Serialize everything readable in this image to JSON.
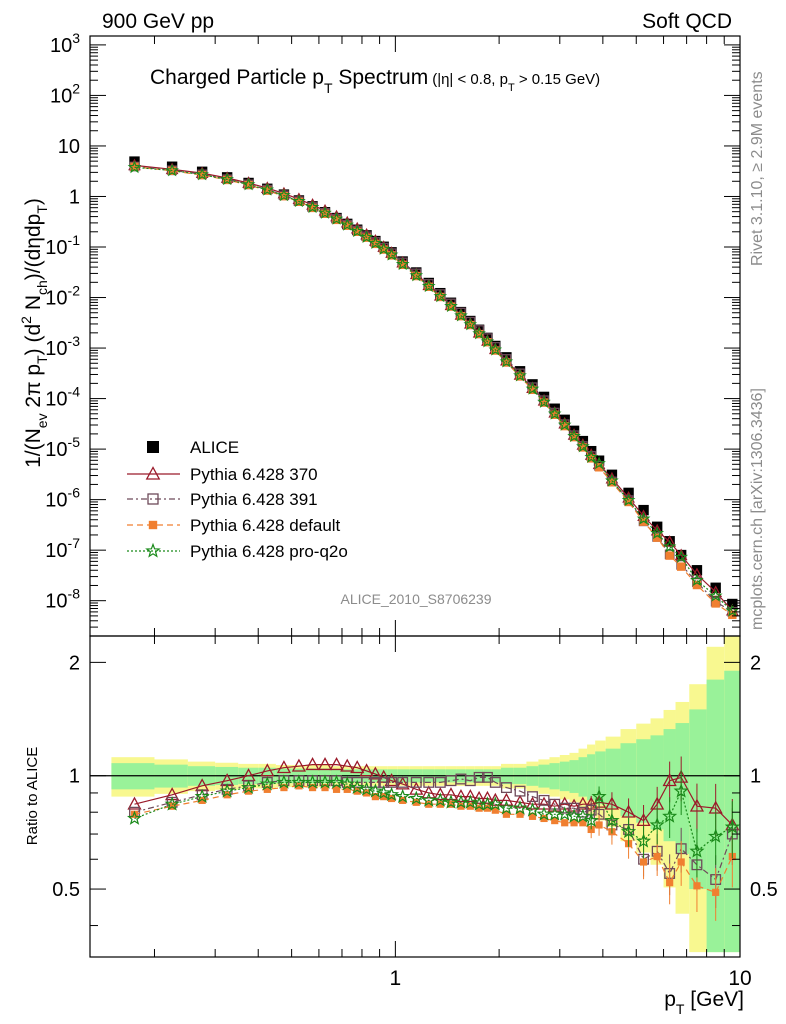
{
  "header": {
    "left": "900 GeV pp",
    "right": "Soft QCD"
  },
  "side_text": {
    "rivet": "Rivet 3.1.10, ≥ 2.9M events",
    "mcplots": "mcplots.cern.ch [arXiv:1306.3436]"
  },
  "plot_title": {
    "main_pre": "Charged Particle p",
    "main_sub": "T",
    "main_post": " Spectrum",
    "cut_a": "(|η| < 0.8, p",
    "cut_sub": "T",
    "cut_b": " > 0.15 GeV)"
  },
  "analysis_id": "ALICE_2010_S8706239",
  "labels": {
    "xlabel": "p",
    "xlabel_sub": "T",
    "xlabel_unit": " [GeV]",
    "ylabel_main": "1/(N",
    "ylabel_ev": "ev",
    "ylabel_mid": " 2π p",
    "ylabel_T1": "T",
    "ylabel_mid2": ") (d",
    "ylabel_sq": "2",
    "ylabel_N": " N",
    "ylabel_ch": "ch",
    "ylabel_end": ")/(dηdp",
    "ylabel_T2": "T",
    "ylabel_close": ")",
    "ratio_ylabel": "Ratio to ALICE"
  },
  "colors": {
    "alice": "#000000",
    "p370": "#9a1a2a",
    "p391": "#6e4a5a",
    "default": "#f07f30",
    "proq2o": "#1a8a1a",
    "band_inner": "#99f299",
    "band_outer": "#f8f890"
  },
  "chart_data": {
    "type": "scatter",
    "title": "Charged Particle pT Spectrum",
    "x_scale": "log",
    "y_scale": "log",
    "xlim": [
      0.13,
      10
    ],
    "ylim_main": [
      2e-09,
      1500
    ],
    "ylim_ratio": [
      0.33,
      2.35
    ],
    "x_tick_labels": [
      "1",
      "10"
    ],
    "y_tick_labels": [
      "10^-8",
      "10^-7",
      "10^-6",
      "10^-5",
      "10^-4",
      "10^-3",
      "10^-2",
      "10^-1",
      "1",
      "10",
      "10^2",
      "10^3"
    ],
    "ratio_tick_labels": [
      "0.5",
      "1",
      "2"
    ],
    "legend_position": "lower-left",
    "x": [
      0.175,
      0.225,
      0.275,
      0.325,
      0.375,
      0.425,
      0.475,
      0.525,
      0.575,
      0.625,
      0.675,
      0.725,
      0.775,
      0.825,
      0.875,
      0.925,
      0.975,
      1.05,
      1.15,
      1.25,
      1.35,
      1.45,
      1.55,
      1.65,
      1.75,
      1.85,
      1.95,
      2.1,
      2.3,
      2.5,
      2.7,
      2.9,
      3.1,
      3.3,
      3.5,
      3.7,
      3.9,
      4.25,
      4.75,
      5.25,
      5.75,
      6.25,
      6.75,
      7.5,
      8.5,
      9.5
    ],
    "series": [
      {
        "name": "ALICE",
        "marker": "filled-square",
        "values": [
          4.9,
          3.88,
          3.08,
          2.39,
          1.85,
          1.42,
          1.09,
          0.834,
          0.638,
          0.488,
          0.374,
          0.287,
          0.22,
          0.17,
          0.131,
          0.101,
          0.0785,
          0.0516,
          0.0313,
          0.0194,
          0.0122,
          0.00788,
          0.00515,
          0.00343,
          0.0023,
          0.00159,
          0.0011,
          0.000655,
          0.000347,
          0.000191,
          0.000108,
          6.3e-05,
          3.8e-05,
          2.3e-05,
          1.44e-05,
          9.1e-06,
          5.9e-06,
          3.1e-06,
          1.36e-06,
          6.2e-07,
          2.9e-07,
          1.5e-07,
          8e-08,
          4e-08,
          1.8e-08,
          8.6e-09
        ],
        "uncertainty": [
          0.08,
          0.07,
          0.06,
          0.055,
          0.05,
          0.05,
          0.045,
          0.045,
          0.045,
          0.045,
          0.04,
          0.04,
          0.04,
          0.04,
          0.04,
          0.04,
          0.04,
          0.04,
          0.04,
          0.04,
          0.04,
          0.04,
          0.04,
          0.04,
          0.04,
          0.04,
          0.04,
          0.05,
          0.05,
          0.06,
          0.07,
          0.08,
          0.09,
          0.1,
          0.12,
          0.14,
          0.16,
          0.18,
          0.22,
          0.25,
          0.28,
          0.33,
          0.38,
          0.5,
          0.8,
          0.9
        ]
      },
      {
        "name": "Pythia 6.428 370",
        "marker": "open-triangle",
        "ratio": [
          0.84,
          0.89,
          0.94,
          0.97,
          1.0,
          1.03,
          1.05,
          1.06,
          1.07,
          1.07,
          1.07,
          1.06,
          1.05,
          1.03,
          1.01,
          0.99,
          0.97,
          0.95,
          0.92,
          0.9,
          0.89,
          0.89,
          0.88,
          0.88,
          0.87,
          0.87,
          0.86,
          0.86,
          0.85,
          0.84,
          0.84,
          0.83,
          0.84,
          0.83,
          0.84,
          0.84,
          0.85,
          0.84,
          0.8,
          0.76,
          0.84,
          0.97,
          0.99,
          0.83,
          0.82,
          0.74
        ]
      },
      {
        "name": "Pythia 6.428 391",
        "marker": "open-square",
        "ratio": [
          0.8,
          0.85,
          0.89,
          0.92,
          0.94,
          0.96,
          0.97,
          0.97,
          0.97,
          0.97,
          0.97,
          0.96,
          0.96,
          0.96,
          0.96,
          0.96,
          0.96,
          0.96,
          0.96,
          0.96,
          0.96,
          0.97,
          0.98,
          0.97,
          0.99,
          0.99,
          0.96,
          0.93,
          0.91,
          0.88,
          0.86,
          0.84,
          0.82,
          0.82,
          0.8,
          0.81,
          0.79,
          0.74,
          0.72,
          0.6,
          0.63,
          0.55,
          0.64,
          0.58,
          0.53,
          0.7
        ]
      },
      {
        "name": "Pythia 6.428 default",
        "marker": "filled-square",
        "ratio": [
          0.79,
          0.83,
          0.86,
          0.89,
          0.91,
          0.92,
          0.93,
          0.94,
          0.93,
          0.93,
          0.92,
          0.92,
          0.91,
          0.9,
          0.88,
          0.88,
          0.87,
          0.86,
          0.85,
          0.84,
          0.84,
          0.84,
          0.83,
          0.83,
          0.82,
          0.82,
          0.81,
          0.79,
          0.79,
          0.78,
          0.77,
          0.76,
          0.75,
          0.75,
          0.75,
          0.72,
          0.74,
          0.71,
          0.66,
          0.59,
          0.61,
          0.52,
          0.59,
          0.51,
          0.49,
          0.61
        ]
      },
      {
        "name": "Pythia 6.428 pro-q2o",
        "marker": "star",
        "ratio": [
          0.77,
          0.84,
          0.88,
          0.91,
          0.93,
          0.95,
          0.96,
          0.96,
          0.96,
          0.96,
          0.96,
          0.95,
          0.93,
          0.92,
          0.91,
          0.9,
          0.89,
          0.88,
          0.87,
          0.86,
          0.86,
          0.85,
          0.85,
          0.85,
          0.84,
          0.84,
          0.84,
          0.82,
          0.82,
          0.81,
          0.79,
          0.79,
          0.79,
          0.78,
          0.78,
          0.76,
          0.88,
          0.76,
          0.71,
          0.67,
          0.74,
          0.78,
          0.91,
          0.63,
          0.69,
          0.73
        ]
      }
    ]
  }
}
